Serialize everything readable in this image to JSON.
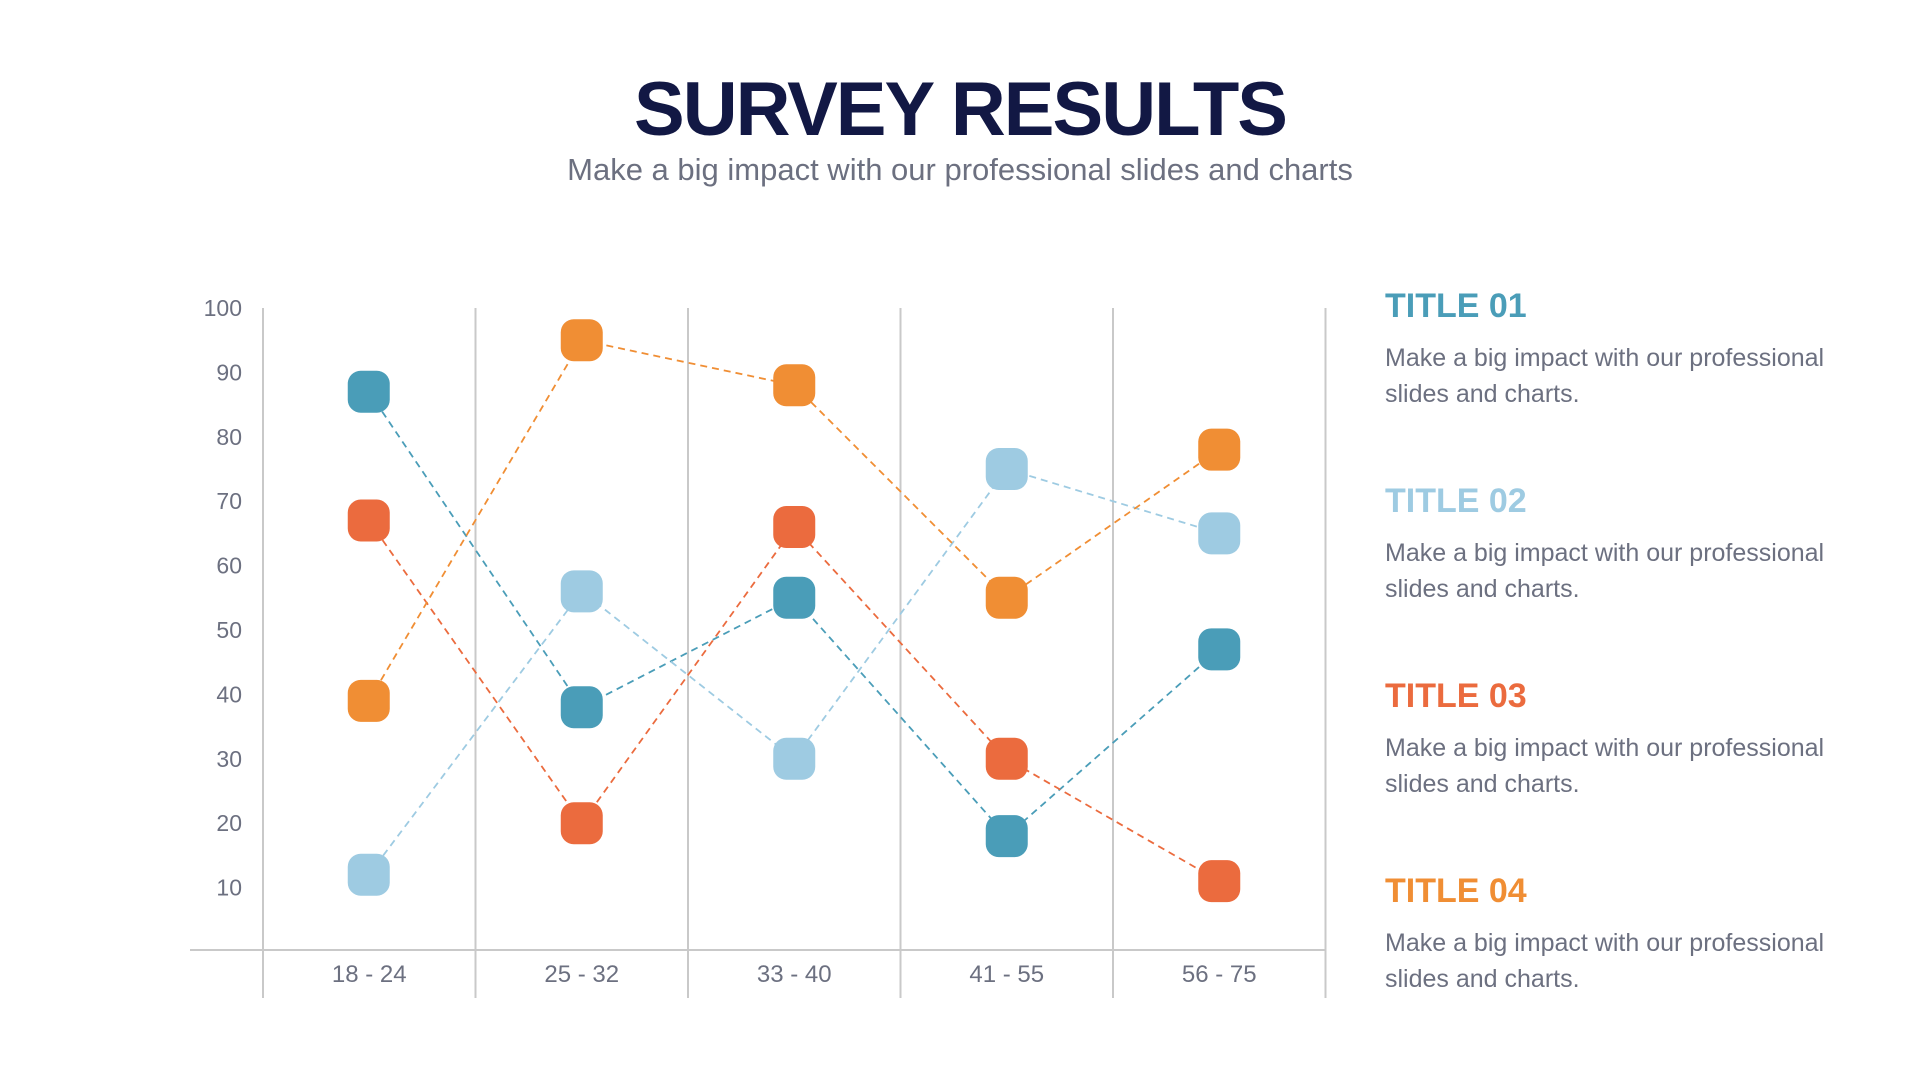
{
  "header": {
    "title": "SURVEY RESULTS",
    "subtitle": "Make a big impact with our professional slides and charts"
  },
  "colors": {
    "title": "#121844",
    "text": "#6c7080",
    "axis": "#c9c9c9"
  },
  "chart_data": {
    "type": "line",
    "title": "",
    "xlabel": "",
    "ylabel": "",
    "categories": [
      "18 - 24",
      "25 - 32",
      "33 - 40",
      "41 - 55",
      "56 - 75"
    ],
    "y_ticks": [
      10,
      20,
      30,
      40,
      50,
      60,
      70,
      80,
      90,
      100
    ],
    "ylim": [
      0,
      100
    ],
    "grid": true,
    "marker": "rounded-square",
    "line_style": "dashed",
    "series": [
      {
        "name": "TITLE 01",
        "color": "#4a9db8",
        "values": [
          87,
          38,
          55,
          18,
          47
        ]
      },
      {
        "name": "TITLE 02",
        "color": "#9ecbe2",
        "values": [
          12,
          56,
          30,
          75,
          65
        ]
      },
      {
        "name": "TITLE 03",
        "color": "#eb6b3e",
        "values": [
          67,
          20,
          66,
          30,
          11
        ]
      },
      {
        "name": "TITLE 04",
        "color": "#f08e34",
        "values": [
          39,
          95,
          88,
          55,
          78
        ]
      }
    ]
  },
  "legend": {
    "items": [
      {
        "title": "TITLE 01",
        "body": "Make a big impact with our professional slides and charts.",
        "color": "#4a9db8"
      },
      {
        "title": "TITLE 02",
        "body": "Make a big impact with our professional slides and charts.",
        "color": "#9ecbe2"
      },
      {
        "title": "TITLE 03",
        "body": "Make a big impact with our professional slides and charts.",
        "color": "#eb6b3e"
      },
      {
        "title": "TITLE 04",
        "body": "Make a big impact with our professional slides and charts.",
        "color": "#f08e34"
      }
    ]
  }
}
